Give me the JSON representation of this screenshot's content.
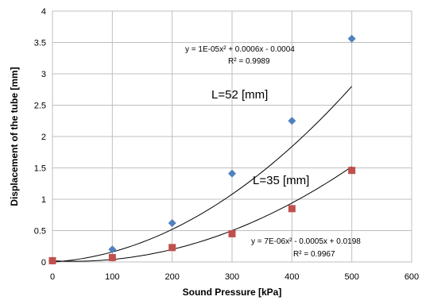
{
  "chart_data": {
    "type": "scatter",
    "xlabel": "Sound Pressure [kPa]",
    "ylabel": "Displacement of the tube [mm]",
    "xlim": [
      0,
      600
    ],
    "ylim": [
      0,
      4
    ],
    "x_ticks": [
      "0",
      "100",
      "200",
      "300",
      "400",
      "500",
      "600"
    ],
    "y_ticks": [
      "0",
      "0.5",
      "1",
      "1.5",
      "2",
      "2.5",
      "3",
      "3.5",
      "4"
    ],
    "grid": true,
    "series": [
      {
        "name": "L=52 [mm]",
        "marker": "diamond",
        "color": "#4f81bd",
        "x": [
          0,
          100,
          200,
          300,
          400,
          500
        ],
        "y": [
          0.02,
          0.2,
          0.62,
          1.41,
          2.25,
          3.56
        ],
        "trendline": {
          "type": "poly2",
          "a": 1e-05,
          "b": 0.0006,
          "c": -0.0004
        },
        "equation": "y = 1E-05x² + 0.0006x - 0.0004",
        "r2": "R² = 0.9989"
      },
      {
        "name": "L=35 [mm]",
        "marker": "square",
        "color": "#c0504d",
        "x": [
          0,
          100,
          200,
          300,
          400,
          500
        ],
        "y": [
          0.02,
          0.07,
          0.23,
          0.45,
          0.85,
          1.46
        ],
        "trendline": {
          "type": "poly2",
          "a": 7e-06,
          "b": -0.0005,
          "c": 0.0198
        },
        "equation": "y = 7E-06x² - 0.0005x + 0.0198",
        "r2": "R² = 0.9967"
      }
    ]
  }
}
